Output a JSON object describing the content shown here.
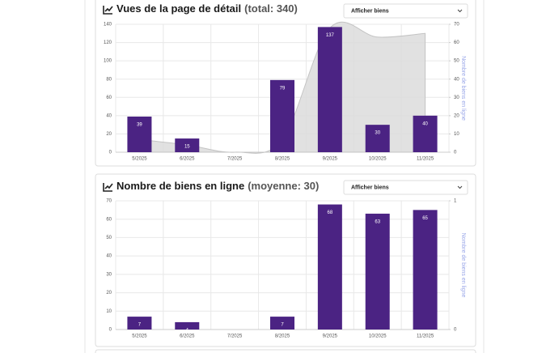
{
  "chart_data": [
    {
      "type": "bar",
      "title": "Vues de la page de détail",
      "title_note": "(total: 340)",
      "dropdown": "Afficher biens",
      "categories": [
        "5/2025",
        "6/2025",
        "7/2025",
        "8/2025",
        "9/2025",
        "10/2025",
        "11/2025"
      ],
      "series": [
        {
          "type": "bar",
          "color": "#4b2383",
          "values": [
            39,
            15,
            null,
            79,
            137,
            30,
            40
          ]
        },
        {
          "type": "area",
          "axis": "y2",
          "color": "#dcdcdc",
          "values": [
            7,
            4,
            0,
            7,
            68,
            63,
            65
          ]
        }
      ],
      "ylim": [
        0,
        140
      ],
      "yticks": [
        0,
        20,
        40,
        60,
        80,
        100,
        120,
        140
      ],
      "y2lim": [
        0,
        70
      ],
      "y2ticks": [
        0,
        10,
        20,
        30,
        40,
        50,
        60,
        70
      ],
      "y2label": "Nombre de biens en ligne",
      "grid": true
    },
    {
      "type": "bar",
      "title": "Nombre de biens en ligne",
      "title_note": "(moyenne: 30)",
      "dropdown": "Afficher biens",
      "categories": [
        "5/2025",
        "6/2025",
        "7/2025",
        "8/2025",
        "9/2025",
        "10/2025",
        "11/2025"
      ],
      "series": [
        {
          "type": "bar",
          "color": "#4b2383",
          "values": [
            7,
            4,
            null,
            7,
            68,
            63,
            65
          ]
        }
      ],
      "ylim": [
        0,
        70
      ],
      "yticks": [
        0,
        10,
        20,
        30,
        40,
        50,
        60,
        70
      ],
      "y2lim": [
        0,
        1
      ],
      "y2ticks": [
        0,
        1
      ],
      "y2label": "Nombre de biens en ligne",
      "grid": true
    }
  ]
}
